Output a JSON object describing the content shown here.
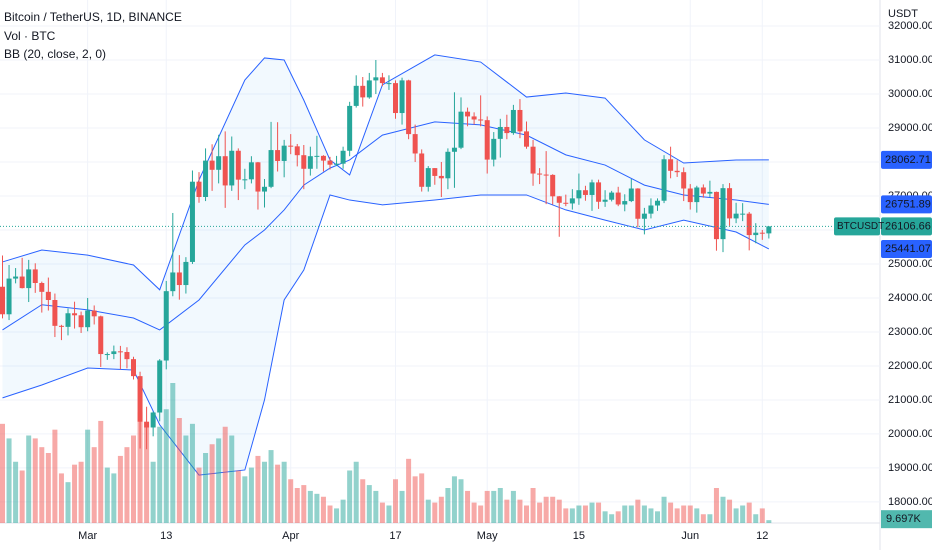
{
  "chart_data": {
    "type": "candlestick",
    "title": "Bitcoin / TetherUS, 1D, BINANCE",
    "volume_title": "Vol · BTC",
    "indicator_title": "BB (20, close, 2, 0)",
    "currency": "USDT",
    "symbol": "BTCUSDT",
    "up_color": "#26a69a",
    "down_color": "#ef5350",
    "band_color": "#2962ff",
    "ylim": [
      17380,
      32765
    ],
    "yticks": [
      {
        "value": 18000,
        "label": "18000.00"
      },
      {
        "value": 19000,
        "label": "19000.00"
      },
      {
        "value": 20000,
        "label": "20000.00"
      },
      {
        "value": 21000,
        "label": "21000.00"
      },
      {
        "value": 22000,
        "label": "22000.00"
      },
      {
        "value": 23000,
        "label": "23000.00"
      },
      {
        "value": 24000,
        "label": "24000.00"
      },
      {
        "value": 25000,
        "label": "25000.00"
      },
      {
        "value": 26000,
        "label": "26000.00"
      },
      {
        "value": 27000,
        "label": "27000.00"
      },
      {
        "value": 28000,
        "label": "28000.00"
      },
      {
        "value": 29000,
        "label": "29000.00"
      },
      {
        "value": 30000,
        "label": "30000.00"
      },
      {
        "value": 31000,
        "label": "31000.00"
      },
      {
        "value": 32000,
        "label": "32000.00"
      }
    ],
    "xticks": [
      {
        "value": 13,
        "label": "Mar"
      },
      {
        "value": 25,
        "label": "13"
      },
      {
        "value": 44,
        "label": "Apr"
      },
      {
        "value": 60,
        "label": "17"
      },
      {
        "value": 74,
        "label": "May"
      },
      {
        "value": 88,
        "label": "15"
      },
      {
        "value": 105,
        "label": "Jun"
      },
      {
        "value": 116,
        "label": "12"
      }
    ],
    "ohlc": [
      [
        24330,
        25250,
        23400,
        23520
      ],
      [
        23520,
        24970,
        23350,
        24570
      ],
      [
        24570,
        24880,
        24430,
        24630
      ],
      [
        24630,
        25180,
        24280,
        24290
      ],
      [
        24290,
        25120,
        23880,
        24840
      ],
      [
        24840,
        25020,
        24150,
        24440
      ],
      [
        24440,
        24480,
        23570,
        24180
      ],
      [
        24180,
        24600,
        23630,
        23940
      ],
      [
        23940,
        24130,
        22850,
        23180
      ],
      [
        23180,
        23210,
        22760,
        23150
      ],
      [
        23150,
        23690,
        22900,
        23550
      ],
      [
        23550,
        23890,
        23100,
        23490
      ],
      [
        23490,
        23600,
        22970,
        23140
      ],
      [
        23140,
        24000,
        23020,
        23630
      ],
      [
        23630,
        23780,
        23220,
        23460
      ],
      [
        23460,
        23480,
        21970,
        22350
      ],
      [
        22350,
        22400,
        22180,
        22350
      ],
      [
        22350,
        22600,
        22200,
        22430
      ],
      [
        22430,
        22590,
        21900,
        22410
      ],
      [
        22410,
        22550,
        21930,
        22200
      ],
      [
        22200,
        22270,
        21600,
        21700
      ],
      [
        21700,
        21830,
        19570,
        20360
      ],
      [
        20360,
        20800,
        19550,
        20190
      ],
      [
        20190,
        20660,
        19930,
        20630
      ],
      [
        20630,
        22200,
        20370,
        22160
      ],
      [
        22160,
        24500,
        21900,
        24200
      ],
      [
        24200,
        26500,
        24050,
        24750
      ],
      [
        24750,
        25260,
        23950,
        24380
      ],
      [
        24380,
        25200,
        24130,
        25060
      ],
      [
        25060,
        27750,
        25000,
        27420
      ],
      [
        27420,
        27700,
        26800,
        26970
      ],
      [
        26970,
        28400,
        26850,
        28040
      ],
      [
        28040,
        28520,
        27150,
        27770
      ],
      [
        27770,
        28800,
        27370,
        28170
      ],
      [
        28170,
        28900,
        26650,
        27310
      ],
      [
        27310,
        28750,
        27150,
        28330
      ],
      [
        28330,
        28400,
        26880,
        27480
      ],
      [
        27480,
        27800,
        27200,
        27490
      ],
      [
        27490,
        28170,
        27370,
        27990
      ],
      [
        27990,
        28000,
        26600,
        27130
      ],
      [
        27130,
        27500,
        26660,
        27270
      ],
      [
        27270,
        29180,
        27230,
        28350
      ],
      [
        28350,
        29170,
        27720,
        28030
      ],
      [
        28030,
        28650,
        27550,
        28480
      ],
      [
        28480,
        28820,
        28230,
        28460
      ],
      [
        28460,
        28530,
        27870,
        28200
      ],
      [
        28200,
        28500,
        27200,
        27800
      ],
      [
        27800,
        28450,
        27600,
        28170
      ],
      [
        28170,
        28770,
        27800,
        28180
      ],
      [
        28180,
        28200,
        27720,
        28040
      ],
      [
        28040,
        28150,
        27780,
        27920
      ],
      [
        27920,
        28180,
        27880,
        27950
      ],
      [
        27950,
        28450,
        27800,
        28330
      ],
      [
        28330,
        29770,
        28170,
        29650
      ],
      [
        29650,
        30550,
        29600,
        30240
      ],
      [
        30240,
        30500,
        29630,
        29900
      ],
      [
        29900,
        30620,
        29860,
        30400
      ],
      [
        30400,
        31000,
        30000,
        30490
      ],
      [
        30490,
        30620,
        30230,
        30320
      ],
      [
        30320,
        30550,
        30120,
        30320
      ],
      [
        30320,
        30400,
        29270,
        29440
      ],
      [
        29440,
        30480,
        29100,
        30400
      ],
      [
        30400,
        30420,
        28670,
        28820
      ],
      [
        28820,
        29100,
        28000,
        28250
      ],
      [
        28250,
        28370,
        27130,
        27270
      ],
      [
        27270,
        27880,
        27130,
        27820
      ],
      [
        27820,
        27820,
        27330,
        27590
      ],
      [
        27590,
        28000,
        26970,
        27520
      ],
      [
        27520,
        28400,
        27200,
        28300
      ],
      [
        28300,
        30050,
        27240,
        28420
      ],
      [
        28420,
        29900,
        28380,
        29480
      ],
      [
        29480,
        29600,
        29050,
        29340
      ],
      [
        29340,
        29460,
        29100,
        29250
      ],
      [
        29250,
        29960,
        29050,
        29230
      ],
      [
        29230,
        29340,
        27660,
        28070
      ],
      [
        28070,
        28880,
        27870,
        28680
      ],
      [
        28680,
        29270,
        28130,
        29030
      ],
      [
        29030,
        29390,
        28670,
        28850
      ],
      [
        28850,
        29680,
        28800,
        29530
      ],
      [
        29530,
        29850,
        28700,
        28900
      ],
      [
        28900,
        29190,
        28390,
        28450
      ],
      [
        28450,
        28650,
        27300,
        27660
      ],
      [
        27660,
        27820,
        27350,
        27630
      ],
      [
        27630,
        28320,
        26760,
        27620
      ],
      [
        27620,
        27640,
        26750,
        26990
      ],
      [
        26990,
        27000,
        25800,
        26800
      ],
      [
        26800,
        27040,
        26700,
        26780
      ],
      [
        26780,
        27200,
        26600,
        26930
      ],
      [
        26930,
        27660,
        26740,
        27170
      ],
      [
        27170,
        27300,
        26860,
        27030
      ],
      [
        27030,
        27480,
        26560,
        27400
      ],
      [
        27400,
        27480,
        26620,
        26830
      ],
      [
        26830,
        27170,
        26680,
        26890
      ],
      [
        26890,
        27150,
        26840,
        27100
      ],
      [
        27100,
        27270,
        26700,
        26750
      ],
      [
        26750,
        27050,
        26550,
        26850
      ],
      [
        26850,
        27500,
        26820,
        27220
      ],
      [
        27220,
        27230,
        26080,
        26330
      ],
      [
        26330,
        26650,
        25870,
        26480
      ],
      [
        26480,
        26930,
        26340,
        26720
      ],
      [
        26720,
        26930,
        26560,
        26860
      ],
      [
        26860,
        28200,
        26790,
        28080
      ],
      [
        28080,
        28450,
        27520,
        27740
      ],
      [
        27740,
        28050,
        27560,
        27700
      ],
      [
        27700,
        27840,
        26850,
        27220
      ],
      [
        27220,
        27350,
        26600,
        26820
      ],
      [
        26820,
        27300,
        26510,
        27250
      ],
      [
        27250,
        27340,
        26950,
        27070
      ],
      [
        27070,
        27450,
        26970,
        27120
      ],
      [
        27120,
        27130,
        25390,
        25730
      ],
      [
        25730,
        27350,
        25350,
        27230
      ],
      [
        27230,
        27380,
        26120,
        26340
      ],
      [
        26340,
        26800,
        26200,
        26480
      ],
      [
        26480,
        26790,
        26260,
        26480
      ],
      [
        26480,
        26530,
        25400,
        25850
      ],
      [
        25850,
        26200,
        25610,
        25920
      ],
      [
        25920,
        26000,
        25710,
        25900
      ],
      [
        25900,
        26100,
        25750,
        26106.66
      ]
    ],
    "volume": [
      340,
      290,
      210,
      180,
      300,
      290,
      260,
      240,
      320,
      170,
      140,
      200,
      210,
      320,
      260,
      350,
      190,
      170,
      230,
      260,
      300,
      380,
      330,
      210,
      330,
      390,
      480,
      360,
      300,
      340,
      190,
      240,
      270,
      290,
      330,
      300,
      180,
      160,
      190,
      230,
      210,
      250,
      200,
      210,
      150,
      120,
      130,
      110,
      100,
      90,
      60,
      50,
      80,
      180,
      210,
      150,
      130,
      110,
      70,
      60,
      150,
      110,
      220,
      160,
      170,
      80,
      70,
      90,
      120,
      160,
      150,
      110,
      70,
      60,
      110,
      110,
      120,
      80,
      110,
      80,
      60,
      120,
      70,
      90,
      90,
      80,
      50,
      50,
      60,
      60,
      70,
      70,
      40,
      30,
      40,
      60,
      60,
      80,
      60,
      50,
      40,
      90,
      70,
      50,
      60,
      60,
      50,
      30,
      30,
      120,
      90,
      80,
      50,
      60,
      70,
      30,
      50,
      9.697
    ],
    "volume_last_label": "9.697K",
    "bb": {
      "x": [
        0,
        6,
        13,
        20,
        24,
        30,
        37,
        40,
        43,
        46,
        50,
        53,
        58,
        66,
        73,
        80,
        86,
        92,
        98,
        104,
        112,
        117
      ],
      "upper": [
        25060,
        25410,
        25260,
        24970,
        24240,
        27470,
        30410,
        31060,
        31000,
        29820,
        28060,
        27620,
        30270,
        31150,
        30940,
        29910,
        30030,
        29880,
        28650,
        27970,
        28060,
        28062.71
      ],
      "basis": [
        23060,
        23800,
        23650,
        23410,
        23060,
        23940,
        25560,
        26000,
        26590,
        27320,
        27820,
        28060,
        28790,
        29180,
        29090,
        28790,
        28210,
        27910,
        27320,
        27030,
        26880,
        26751.89
      ],
      "lower": [
        21060,
        21440,
        21940,
        21880,
        20270,
        18790,
        18940,
        21000,
        23940,
        24820,
        27030,
        26880,
        26740,
        26880,
        27030,
        27030,
        26590,
        26290,
        26000,
        26290,
        25940,
        25441.07
      ]
    }
  }
}
